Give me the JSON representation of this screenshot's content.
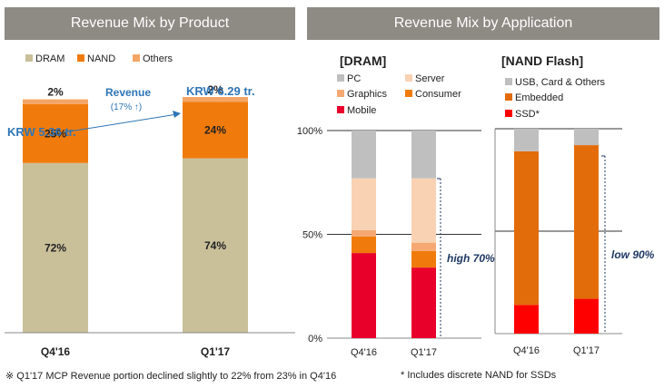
{
  "header_left": "Revenue Mix by Product",
  "header_right": "Revenue Mix by Application",
  "colors": {
    "dram": "#c9c09a",
    "nand": "#f07b0c",
    "others": "#f4a566",
    "pc": "#bfbfbf",
    "server": "#f9d2b4",
    "graphics": "#f5a872",
    "consumer": "#f07b0c",
    "mobile": "#e8002a",
    "usb": "#bfbfbf",
    "embedded": "#e36c0a",
    "ssd": "#ff0000"
  },
  "footnotes": {
    "left": "※ Q1'17 MCP Revenue portion declined slightly to 22% from 23% in Q4'16",
    "right": "* Includes discrete NAND for SSDs"
  },
  "chart_data": [
    {
      "type": "bar",
      "stacked": true,
      "categories": [
        "Q4'16",
        "Q1'17"
      ],
      "legend": [
        "DRAM",
        "NAND",
        "Others"
      ],
      "series": [
        {
          "name": "DRAM",
          "values": [
            72,
            74
          ],
          "labels": [
            "72%",
            "74%"
          ]
        },
        {
          "name": "NAND",
          "values": [
            25,
            24
          ],
          "labels": [
            "25%",
            "24%"
          ]
        },
        {
          "name": "Others",
          "values": [
            2,
            2
          ],
          "labels": [
            "2%",
            "2%"
          ]
        }
      ],
      "totals": [
        "KRW 5.36 tr.",
        "KRW 6.29 tr."
      ],
      "annotation": {
        "line1": "Revenue",
        "line2": "(17% ↑)"
      }
    },
    {
      "type": "bar",
      "stacked": true,
      "title": "[DRAM]",
      "categories": [
        "Q4'16",
        "Q1'17"
      ],
      "yticks": [
        "100%",
        "50%",
        "0%"
      ],
      "ylim": [
        0,
        100
      ],
      "series": [
        {
          "name": "Mobile",
          "values": [
            41,
            34
          ]
        },
        {
          "name": "Consumer",
          "values": [
            8,
            8
          ]
        },
        {
          "name": "Graphics",
          "values": [
            3,
            4
          ]
        },
        {
          "name": "Server",
          "values": [
            25,
            31
          ]
        },
        {
          "name": "PC",
          "values": [
            23,
            23
          ]
        }
      ],
      "legend": [
        "PC",
        "Server",
        "Graphics",
        "Consumer",
        "Mobile"
      ],
      "annotation": "high 70%"
    },
    {
      "type": "bar",
      "stacked": true,
      "title": "[NAND Flash]",
      "categories": [
        "Q4'16",
        "Q1'17"
      ],
      "ylim": [
        0,
        100
      ],
      "series": [
        {
          "name": "SSD*",
          "values": [
            14,
            17
          ]
        },
        {
          "name": "Embedded",
          "values": [
            75,
            75
          ]
        },
        {
          "name": "USB, Card & Others",
          "values": [
            11,
            8
          ]
        }
      ],
      "legend": [
        "USB, Card & Others",
        "Embedded",
        "SSD*"
      ],
      "annotation": "low 90%"
    }
  ]
}
